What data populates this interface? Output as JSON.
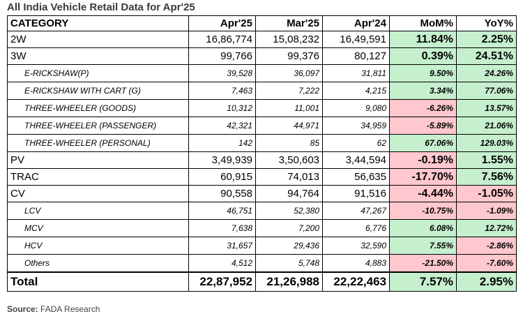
{
  "title": "All India Vehicle Retail Data for Apr'25",
  "source_label": "Source:",
  "source_value": "FADA Research",
  "headers": [
    "CATEGORY",
    "Apr'25",
    "Mar'25",
    "Apr'24",
    "MoM%",
    "YoY%"
  ],
  "rows": [
    {
      "category": "2W",
      "apr25": "16,86,774",
      "mar25": "15,08,232",
      "apr24": "16,49,591",
      "mom": "11.84%",
      "yoy": "2.25%"
    },
    {
      "category": "3W",
      "apr25": "99,766",
      "mar25": "99,376",
      "apr24": "80,127",
      "mom": "0.39%",
      "yoy": "24.51%"
    },
    {
      "category": "E-RICKSHAW(P)",
      "apr25": "39,528",
      "mar25": "36,097",
      "apr24": "31,811",
      "mom": "9.50%",
      "yoy": "24.26%"
    },
    {
      "category": "E-RICKSHAW WITH CART (G)",
      "apr25": "7,463",
      "mar25": "7,222",
      "apr24": "4,215",
      "mom": "3.34%",
      "yoy": "77.06%"
    },
    {
      "category": "THREE-WHEELER (GOODS)",
      "apr25": "10,312",
      "mar25": "11,001",
      "apr24": "9,080",
      "mom": "-6.26%",
      "yoy": "13.57%"
    },
    {
      "category": "THREE-WHEELER (PASSENGER)",
      "apr25": "42,321",
      "mar25": "44,971",
      "apr24": "34,959",
      "mom": "-5.89%",
      "yoy": "21.06%"
    },
    {
      "category": "THREE-WHEELER (PERSONAL)",
      "apr25": "142",
      "mar25": "85",
      "apr24": "62",
      "mom": "67.06%",
      "yoy": "129.03%"
    },
    {
      "category": "PV",
      "apr25": "3,49,939",
      "mar25": "3,50,603",
      "apr24": "3,44,594",
      "mom": "-0.19%",
      "yoy": "1.55%"
    },
    {
      "category": "TRAC",
      "apr25": "60,915",
      "mar25": "74,013",
      "apr24": "56,635",
      "mom": "-17.70%",
      "yoy": "7.56%"
    },
    {
      "category": "CV",
      "apr25": "90,558",
      "mar25": "94,764",
      "apr24": "91,516",
      "mom": "-4.44%",
      "yoy": "-1.05%"
    },
    {
      "category": "LCV",
      "apr25": "46,751",
      "mar25": "52,380",
      "apr24": "47,267",
      "mom": "-10.75%",
      "yoy": "-1.09%"
    },
    {
      "category": "MCV",
      "apr25": "7,638",
      "mar25": "7,200",
      "apr24": "6,776",
      "mom": "6.08%",
      "yoy": "12.72%"
    },
    {
      "category": "HCV",
      "apr25": "31,657",
      "mar25": "29,436",
      "apr24": "32,590",
      "mom": "7.55%",
      "yoy": "-2.86%"
    },
    {
      "category": "Others",
      "apr25": "4,512",
      "mar25": "5,748",
      "apr24": "4,883",
      "mom": "-21.50%",
      "yoy": "-7.60%"
    }
  ],
  "total": {
    "category": "Total",
    "apr25": "22,87,952",
    "mar25": "21,26,988",
    "apr24": "22,22,463",
    "mom": "7.57%",
    "yoy": "2.95%"
  },
  "colors": {
    "positive_fill": "#c6efce",
    "negative_fill": "#ffc7ce",
    "negative_text": "#9c0006"
  }
}
